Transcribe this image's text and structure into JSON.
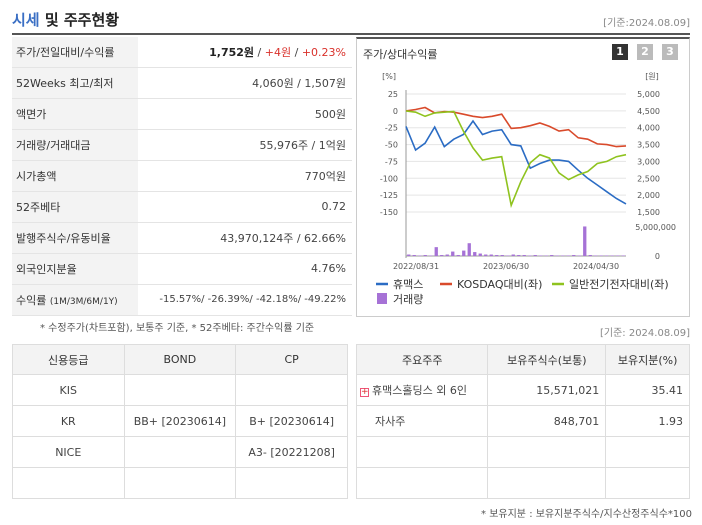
{
  "header": {
    "title_part1": "시세",
    "title_part2": "및 주주현황",
    "date": "[기준:2024.08.09]"
  },
  "quote": {
    "rows": [
      {
        "label": "주가/전일대비/수익률"
      },
      {
        "label": "52Weeks 최고/최저",
        "value": "4,060원 / 1,507원"
      },
      {
        "label": "액면가",
        "value": "500원"
      },
      {
        "label": "거래량/거래대금",
        "value": "55,976주 / 1억원"
      },
      {
        "label": "시가총액",
        "value": "770억원"
      },
      {
        "label": "52주베타",
        "value": "0.72"
      },
      {
        "label": "발행주식수/유동비율",
        "value": "43,970,124주 / 62.66%"
      },
      {
        "label": "외국인지분율",
        "value": "4.76%"
      },
      {
        "label": "수익률",
        "label_sub": "(1M/3M/6M/1Y)",
        "value": "-15.57%/ -26.39%/ -42.18%/ -49.22%"
      }
    ],
    "price": "1,752원",
    "sep1": "/",
    "change": "+4원",
    "sep2": "/",
    "rate": "+0.23%",
    "note": "* 수정주가(차트포함), 보통주 기준, * 52주베타: 주간수익률 기준"
  },
  "chart_panel": {
    "title": "주가/상대수익률",
    "pages": [
      "1",
      "2",
      "3"
    ],
    "date_note": "[기준: 2024.08.09]"
  },
  "chart_data": {
    "type": "line",
    "left_unit": "[%]",
    "right_unit": "[원]",
    "y_left_ticks": [
      "25",
      "0",
      "-25",
      "-50",
      "-75",
      "-100",
      "-125",
      "-150"
    ],
    "y_right_ticks": [
      "5,000",
      "4,500",
      "4,000",
      "3,500",
      "3,000",
      "2,500",
      "2,000",
      "1,500"
    ],
    "ylim_left": [
      -150,
      25
    ],
    "ylim_right": [
      1500,
      5000
    ],
    "volume_ticks": [
      "5,000,000",
      "0"
    ],
    "x_ticks": [
      "2022/08/31",
      "2023/06/30",
      "2024/04/30"
    ],
    "series": [
      {
        "name": "휴맥스",
        "color": "#2b6cc4",
        "axis": "left",
        "values": [
          -23,
          -58,
          -48,
          -24,
          -53,
          -42,
          -35,
          -15,
          -35,
          -30,
          -28,
          -50,
          -52,
          -85,
          -78,
          -73,
          -73,
          -75,
          -88,
          -100,
          -110,
          -120,
          -130,
          -138
        ]
      },
      {
        "name": "KOSDAQ대비(좌)",
        "color": "#d94a2b",
        "axis": "left",
        "values": [
          0,
          2,
          5,
          -3,
          -1,
          -2,
          -5,
          -8,
          -10,
          -8,
          -5,
          -26,
          -25,
          -22,
          -18,
          -23,
          -30,
          -28,
          -40,
          -42,
          -49,
          -50,
          -53,
          -52
        ]
      },
      {
        "name": "일반전기전자대비(좌)",
        "color": "#8fc31f",
        "axis": "left",
        "values": [
          0,
          -2,
          -8,
          -3,
          -2,
          -1,
          -30,
          -55,
          -73,
          -70,
          -68,
          -140,
          -105,
          -77,
          -65,
          -70,
          -92,
          -102,
          -95,
          -90,
          -78,
          -75,
          -68,
          -65
        ]
      }
    ],
    "volume": {
      "name": "거래량",
      "color": "#a672d6",
      "values": [
        0.3,
        0.2,
        0.1,
        0.2,
        0.1,
        1.8,
        0.2,
        0.3,
        0.9,
        0.2,
        1.1,
        2.6,
        0.8,
        0.5,
        0.3,
        0.3,
        0.2,
        0.2,
        0.1,
        0.3,
        0.2,
        0.2,
        0.1,
        0.2,
        0.1,
        0.1,
        0.2,
        0.1,
        0.1,
        0.1,
        0.2,
        0.1,
        6.0,
        0.2,
        0.1,
        0.1,
        0.1,
        0.1,
        0.1,
        0.1
      ]
    }
  },
  "credit": {
    "headers": [
      "신용등급",
      "BOND",
      "CP"
    ],
    "rows": [
      [
        "KIS",
        "",
        ""
      ],
      [
        "KR",
        "BB+ [20230614]",
        "B+ [20230614]"
      ],
      [
        "NICE",
        "",
        "A3- [20221208]"
      ],
      [
        "",
        "",
        ""
      ]
    ]
  },
  "holders": {
    "headers": [
      "주요주주",
      "보유주식수(보통)",
      "보유지분(%)"
    ],
    "rows": [
      [
        "휴맥스홀딩스 외 6인",
        "15,571,021",
        "35.41"
      ],
      [
        "자사주",
        "848,701",
        "1.93"
      ],
      [
        "",
        "",
        ""
      ],
      [
        "",
        "",
        ""
      ]
    ],
    "plus_icon": "+",
    "note": "* 보유지분 : 보유지분주식수/지수산정주식수*100"
  }
}
